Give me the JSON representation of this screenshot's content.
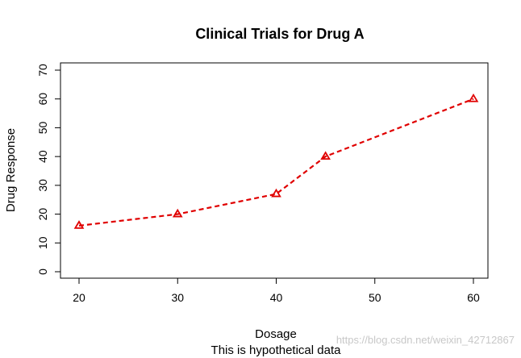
{
  "chart_data": {
    "type": "line",
    "title": "Clinical Trials for Drug A",
    "xlabel": "Dosage",
    "ylabel": "Drug Response",
    "subtitle": "This is hypothetical data",
    "x": [
      20,
      30,
      40,
      45,
      60
    ],
    "series": [
      {
        "values": [
          16,
          20,
          27,
          40,
          60
        ],
        "color": "#e00000",
        "line_style": "dashed",
        "marker": "triangle-open"
      }
    ],
    "xlim": [
      20,
      60
    ],
    "ylim": [
      0,
      70
    ],
    "xticks": [
      20,
      30,
      40,
      50,
      60
    ],
    "yticks": [
      0,
      10,
      20,
      30,
      40,
      50,
      60,
      70
    ],
    "grid": false,
    "legend": "none"
  },
  "watermark": "https://blog.csdn.net/weixin_42712867"
}
